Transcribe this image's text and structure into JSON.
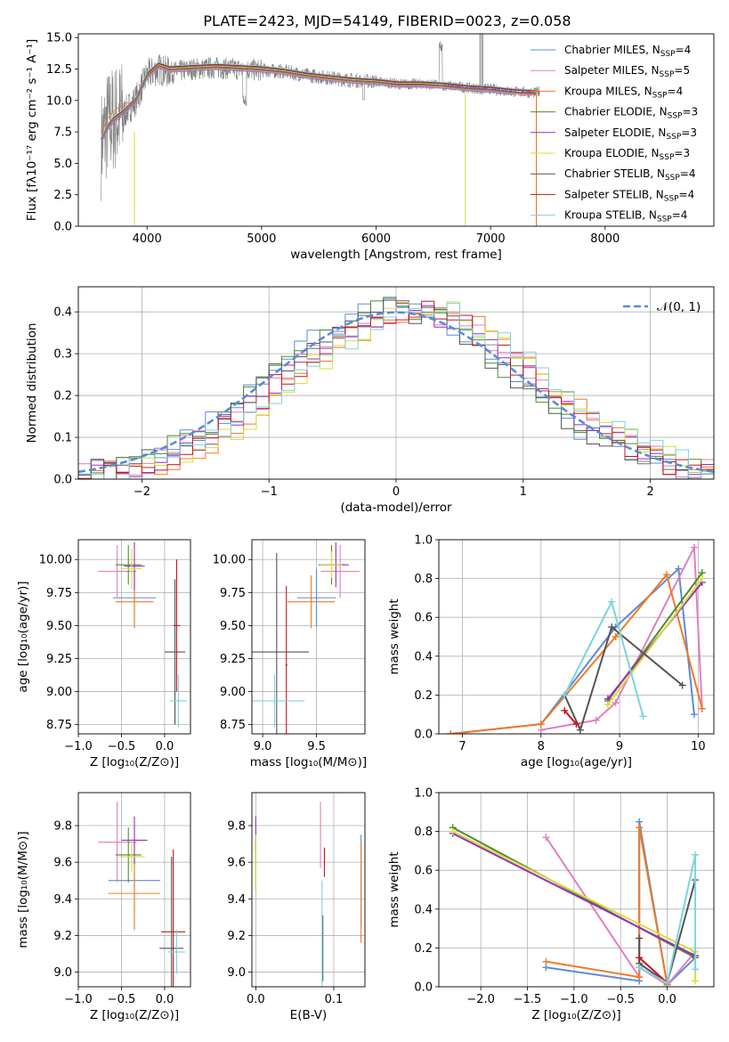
{
  "colors": [
    "#5b8bd9",
    "#e27fbf",
    "#f07a25",
    "#4e8b30",
    "#9b2fbe",
    "#d6e035",
    "#555555",
    "#c8141e",
    "#7dd3dd"
  ],
  "chart_data": [
    {
      "type": "line",
      "title": "PLATE=2423, MJD=54149, FIBERID=0023, z=0.058",
      "xlabel": "wavelength [Angstrom, rest frame]",
      "ylabel": "Flux [fλ10⁻¹⁷ erg cm⁻² s⁻¹ A⁻¹]",
      "xlim": [
        3400,
        8950
      ],
      "ylim": [
        0,
        15.3
      ],
      "xticks": [
        "4000",
        "5000",
        "6000",
        "7000",
        "8000"
      ],
      "yticks": [
        "0.0",
        "2.5",
        "5.0",
        "7.5",
        "10.0",
        "12.5",
        "15.0"
      ],
      "grid": false,
      "legend_position": "right",
      "data_series": {
        "name": "",
        "color": "#808080",
        "x": [
          3600,
          3650,
          3700,
          3800,
          3900,
          4000,
          4100,
          4200,
          4400,
          4600,
          4800,
          5000,
          5200,
          5400,
          5600,
          5800,
          6000,
          6200,
          6400,
          6600,
          6800,
          7000,
          7200,
          7400,
          7430
        ],
        "y": [
          6.5,
          8.0,
          8.5,
          9.0,
          10.0,
          12.0,
          12.5,
          12.2,
          12.5,
          12.6,
          12.5,
          12.4,
          12.3,
          12.0,
          11.8,
          11.6,
          11.5,
          11.3,
          11.3,
          11.2,
          11.0,
          10.9,
          10.7,
          10.6,
          10.8
        ]
      },
      "legend_entries": [
        {
          "prefix": "Chabrier MILES, N",
          "sub": "SSP",
          "suffix": "=4"
        },
        {
          "prefix": "Salpeter MILES, N",
          "sub": "SSP",
          "suffix": "=5"
        },
        {
          "prefix": "Kroupa MILES, N",
          "sub": "SSP",
          "suffix": "=4"
        },
        {
          "prefix": "Chabrier ELODIE, N",
          "sub": "SSP",
          "suffix": "=3"
        },
        {
          "prefix": "Salpeter ELODIE, N",
          "sub": "SSP",
          "suffix": "=3"
        },
        {
          "prefix": "Kroupa ELODIE, N",
          "sub": "SSP",
          "suffix": "=3"
        },
        {
          "prefix": "Chabrier STELIB, N",
          "sub": "SSP",
          "suffix": "=4"
        },
        {
          "prefix": "Salpeter STELIB, N",
          "sub": "SSP",
          "suffix": "=4"
        },
        {
          "prefix": "Kroupa STELIB, N",
          "sub": "SSP",
          "suffix": "=4"
        }
      ],
      "model_x": [
        3600,
        3650,
        3700,
        3800,
        3900,
        4000,
        4100,
        4200,
        4400,
        4600,
        4800,
        5000,
        5200,
        5400,
        5600,
        5800,
        6000,
        6200,
        6400,
        6600,
        6800,
        7000,
        7200,
        7400
      ],
      "model_y": [
        6.8,
        7.8,
        8.4,
        9.1,
        10.0,
        12.0,
        12.8,
        12.5,
        12.6,
        12.7,
        12.6,
        12.5,
        12.3,
        12.0,
        11.8,
        11.6,
        11.5,
        11.3,
        11.3,
        11.2,
        11.0,
        10.9,
        10.7,
        10.6
      ],
      "model_end": [
        7380,
        7400,
        7400,
        7400,
        7400,
        6780,
        7400,
        7400,
        7400
      ]
    },
    {
      "type": "line",
      "xlabel": "(data-model)/error",
      "ylabel": "Normed distribution",
      "xlim": [
        -2.5,
        2.5
      ],
      "ylim": [
        0,
        0.46
      ],
      "xticks": [
        "−2",
        "−1",
        "0",
        "1",
        "2"
      ],
      "yticks": [
        "0.0",
        "0.1",
        "0.2",
        "0.3",
        "0.4"
      ],
      "grid": true,
      "legend_position": "top-right",
      "legend_entry": "𝒩(0, 1)",
      "normal_curve": {
        "name": "𝒩(0, 1)",
        "mean": 0,
        "sigma": 1
      },
      "hist_bin_width": 0.1,
      "hist_range": [
        -2.5,
        2.5
      ]
    },
    {
      "type": "scatter",
      "xlabel": "Z [log₁₀(Z/Z⊙)]",
      "ylabel": "age  [log₁₀(age/yr)]",
      "xlim": [
        -1.0,
        0.3
      ],
      "ylim": [
        8.68,
        10.15
      ],
      "xticks": [
        "−1.0",
        "−0.5",
        "0.0"
      ],
      "yticks": [
        "8.75",
        "9.00",
        "9.25",
        "9.50",
        "9.75",
        "10.00"
      ],
      "grid": true,
      "points": [
        {
          "x": -0.35,
          "y": 9.71,
          "xerr": 0.25,
          "yerr": 0.22
        },
        {
          "x": -0.55,
          "y": 9.91,
          "xerr": 0.22,
          "yerr": 0.2
        },
        {
          "x": -0.35,
          "y": 9.68,
          "xerr": 0.22,
          "yerr": 0.2
        },
        {
          "x": -0.42,
          "y": 9.96,
          "xerr": 0.15,
          "yerr": 0.15
        },
        {
          "x": -0.35,
          "y": 9.95,
          "xerr": 0.12,
          "yerr": 0.18
        },
        {
          "x": -0.38,
          "y": 9.93,
          "xerr": 0.12,
          "yerr": 0.15
        },
        {
          "x": 0.12,
          "y": 9.3,
          "xerr": 0.12,
          "yerr": 0.55
        },
        {
          "x": 0.14,
          "y": 9.5,
          "xerr": 0.04,
          "yerr": 0.5
        },
        {
          "x": 0.16,
          "y": 8.93,
          "xerr": 0.1,
          "yerr": 0.2
        }
      ]
    },
    {
      "type": "scatter",
      "xlabel": "mass [log₁₀(M/M⊙)]",
      "ylabel": "",
      "xlim": [
        8.9,
        9.95
      ],
      "ylim": [
        8.68,
        10.15
      ],
      "xticks": [
        "9.0",
        "9.5"
      ],
      "yticks": [
        "8.75",
        "9.00",
        "9.25",
        "9.50",
        "9.75",
        "10.00"
      ],
      "grid": true,
      "points": [
        {
          "x": 9.5,
          "y": 9.71,
          "xerr": 0.18,
          "yerr": 0.22
        },
        {
          "x": 9.72,
          "y": 9.91,
          "xerr": 0.18,
          "yerr": 0.2
        },
        {
          "x": 9.45,
          "y": 9.68,
          "xerr": 0.22,
          "yerr": 0.2
        },
        {
          "x": 9.64,
          "y": 9.96,
          "xerr": 0.12,
          "yerr": 0.15
        },
        {
          "x": 9.68,
          "y": 9.96,
          "xerr": 0.12,
          "yerr": 0.17
        },
        {
          "x": 9.64,
          "y": 9.96,
          "xerr": 0.1,
          "yerr": 0.1
        },
        {
          "x": 9.13,
          "y": 9.3,
          "xerr": 0.3,
          "yerr": 0.75
        },
        {
          "x": 9.22,
          "y": 9.2,
          "xerr": 0.01,
          "yerr": 0.6
        },
        {
          "x": 9.11,
          "y": 8.93,
          "xerr": 0.28,
          "yerr": 0.2
        }
      ]
    },
    {
      "type": "line",
      "xlabel": "age  [log₁₀(age/yr)]",
      "ylabel": "mass weight",
      "xlim": [
        6.7,
        10.2
      ],
      "ylim": [
        0,
        1.0
      ],
      "xticks": [
        "7",
        "8",
        "9",
        "10"
      ],
      "yticks": [
        "0.0",
        "0.2",
        "0.4",
        "0.6",
        "0.8",
        "1.0"
      ],
      "grid": true,
      "series": [
        {
          "x": [
            6.85,
            8.0,
            8.95,
            9.75,
            9.95
          ],
          "y": [
            0.0,
            0.05,
            0.55,
            0.85,
            0.1
          ]
        },
        {
          "x": [
            8.0,
            8.7,
            8.95,
            9.95,
            10.05
          ],
          "y": [
            0.02,
            0.07,
            0.16,
            0.96,
            0.13
          ]
        },
        {
          "x": [
            6.85,
            8.0,
            8.95,
            9.6,
            10.05
          ],
          "y": [
            0.0,
            0.05,
            0.5,
            0.82,
            0.13
          ]
        },
        {
          "x": [
            8.85,
            10.05
          ],
          "y": [
            0.17,
            0.83
          ]
        },
        {
          "x": [
            8.85,
            10.05
          ],
          "y": [
            0.18,
            0.78
          ]
        },
        {
          "x": [
            8.85,
            10.05
          ],
          "y": [
            0.15,
            0.8
          ]
        },
        {
          "x": [
            8.3,
            8.5,
            8.9,
            9.8
          ],
          "y": [
            0.2,
            0.02,
            0.55,
            0.25
          ]
        },
        {
          "x": [
            8.3,
            8.45
          ],
          "y": [
            0.12,
            0.05
          ]
        },
        {
          "x": [
            8.3,
            8.9,
            9.3
          ],
          "y": [
            0.2,
            0.68,
            0.09
          ]
        }
      ]
    },
    {
      "type": "scatter",
      "xlabel": "Z [log₁₀(Z/Z⊙)]",
      "ylabel": "mass [log₁₀(M/M⊙)]",
      "xlim": [
        -1.0,
        0.3
      ],
      "ylim": [
        8.92,
        9.98
      ],
      "xticks": [
        "−1.0",
        "−0.5",
        "0.0"
      ],
      "yticks": [
        "9.0",
        "9.2",
        "9.4",
        "9.6",
        "9.8"
      ],
      "grid": true,
      "points": [
        {
          "x": -0.35,
          "y": 9.5,
          "xerr": 0.3,
          "yerr": 0.2
        },
        {
          "x": -0.55,
          "y": 9.71,
          "xerr": 0.22,
          "yerr": 0.22
        },
        {
          "x": -0.35,
          "y": 9.43,
          "xerr": 0.3,
          "yerr": 0.2
        },
        {
          "x": -0.42,
          "y": 9.64,
          "xerr": 0.15,
          "yerr": 0.15
        },
        {
          "x": -0.35,
          "y": 9.72,
          "xerr": 0.15,
          "yerr": 0.13
        },
        {
          "x": -0.38,
          "y": 9.63,
          "xerr": 0.15,
          "yerr": 0.08
        },
        {
          "x": 0.08,
          "y": 9.13,
          "xerr": 0.14,
          "yerr": 0.5
        },
        {
          "x": 0.1,
          "y": 9.22,
          "xerr": 0.14,
          "yerr": 0.45
        },
        {
          "x": 0.14,
          "y": 9.11,
          "xerr": 0.1,
          "yerr": 0.12
        }
      ]
    },
    {
      "type": "scatter",
      "xlabel": "E(B-V)",
      "ylabel": "",
      "xlim": [
        -0.005,
        0.14
      ],
      "ylim": [
        8.92,
        9.98
      ],
      "xticks": [
        "0.0",
        "0.1"
      ],
      "yticks": [
        "9.0",
        "9.2",
        "9.4",
        "9.6",
        "9.8"
      ],
      "grid": true,
      "points": [
        {
          "x": 0.135,
          "y": 9.5,
          "xerr": 0,
          "yerr": 0.25
        },
        {
          "x": 0.083,
          "y": 9.75,
          "xerr": 0,
          "yerr": 0.18
        },
        {
          "x": 0.135,
          "y": 9.43,
          "xerr": 0,
          "yerr": 0.27
        },
        {
          "x": 0.0,
          "y": 9.6,
          "xerr": 0,
          "yerr": 0.15
        },
        {
          "x": 0.0,
          "y": 9.75,
          "xerr": 0,
          "yerr": 0.1
        },
        {
          "x": 0.0,
          "y": 9.6,
          "xerr": 0,
          "yerr": 0.15
        },
        {
          "x": 0.086,
          "y": 9.13,
          "xerr": 0,
          "yerr": 0.18
        },
        {
          "x": 0.088,
          "y": 9.6,
          "xerr": 0,
          "yerr": 0.08
        },
        {
          "x": 0.085,
          "y": 9.2,
          "xerr": 0,
          "yerr": 0.3
        }
      ]
    },
    {
      "type": "line",
      "xlabel": "Z [log₁₀(Z/Z⊙)]",
      "ylabel": "mass weight",
      "xlim": [
        -2.45,
        0.5
      ],
      "ylim": [
        0,
        1.0
      ],
      "xticks": [
        "−2.0",
        "−1.5",
        "−1.0",
        "−0.5",
        "0.0"
      ],
      "yticks": [
        "0.0",
        "0.2",
        "0.4",
        "0.6",
        "0.8",
        "1.0"
      ],
      "grid": true,
      "series": [
        {
          "x": [
            -1.3,
            -0.3,
            -0.3,
            0.0,
            0.3
          ],
          "y": [
            0.1,
            0.03,
            0.85,
            0.01,
            0.15
          ]
        },
        {
          "x": [
            -1.3,
            -0.3,
            -0.3,
            0.0,
            0.3
          ],
          "y": [
            0.77,
            0.05,
            0.1,
            0.01,
            0.18
          ]
        },
        {
          "x": [
            -1.3,
            -0.3,
            -0.3,
            0.0
          ],
          "y": [
            0.13,
            0.05,
            0.82,
            0.01
          ]
        },
        {
          "x": [
            -2.3,
            0.3
          ],
          "y": [
            0.82,
            0.15
          ]
        },
        {
          "x": [
            -2.3,
            0.3
          ],
          "y": [
            0.79,
            0.16
          ]
        },
        {
          "x": [
            -2.3,
            0.3,
            0.3
          ],
          "y": [
            0.8,
            0.18,
            0.03
          ]
        },
        {
          "x": [
            -0.3,
            -0.3,
            0.0,
            0.3
          ],
          "y": [
            0.25,
            0.12,
            0.02,
            0.55
          ]
        },
        {
          "x": [
            -0.3,
            0.0
          ],
          "y": [
            0.15,
            0.02
          ]
        },
        {
          "x": [
            -0.3,
            0.0,
            0.3,
            0.3
          ],
          "y": [
            0.1,
            0.02,
            0.68,
            0.09
          ]
        }
      ]
    }
  ]
}
